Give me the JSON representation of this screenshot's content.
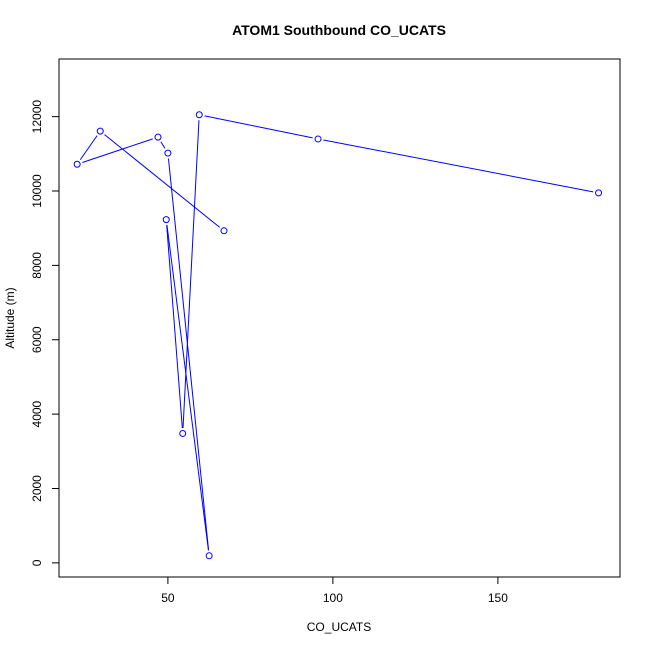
{
  "chart_data": {
    "type": "line",
    "title": "ATOM1 Southbound CO_UCATS",
    "xlabel": "CO_UCATS",
    "ylabel": "Altitude (m)",
    "xlim": [
      17,
      187
    ],
    "ylim": [
      -380,
      13550
    ],
    "x_ticks": [
      50,
      100,
      150
    ],
    "y_ticks": [
      0,
      2000,
      4000,
      6000,
      8000,
      10000,
      12000
    ],
    "grid": false,
    "series_color": "#0000ff",
    "series": [
      {
        "x": [
          180.5,
          95.5,
          59.5,
          54.5,
          49.5,
          62.5,
          50.0,
          47.0,
          22.5,
          29.5,
          67.0
        ],
        "y": [
          9950,
          11400,
          12050,
          3480,
          9230,
          190,
          11020,
          11450,
          10720,
          11610,
          8930
        ]
      }
    ]
  }
}
